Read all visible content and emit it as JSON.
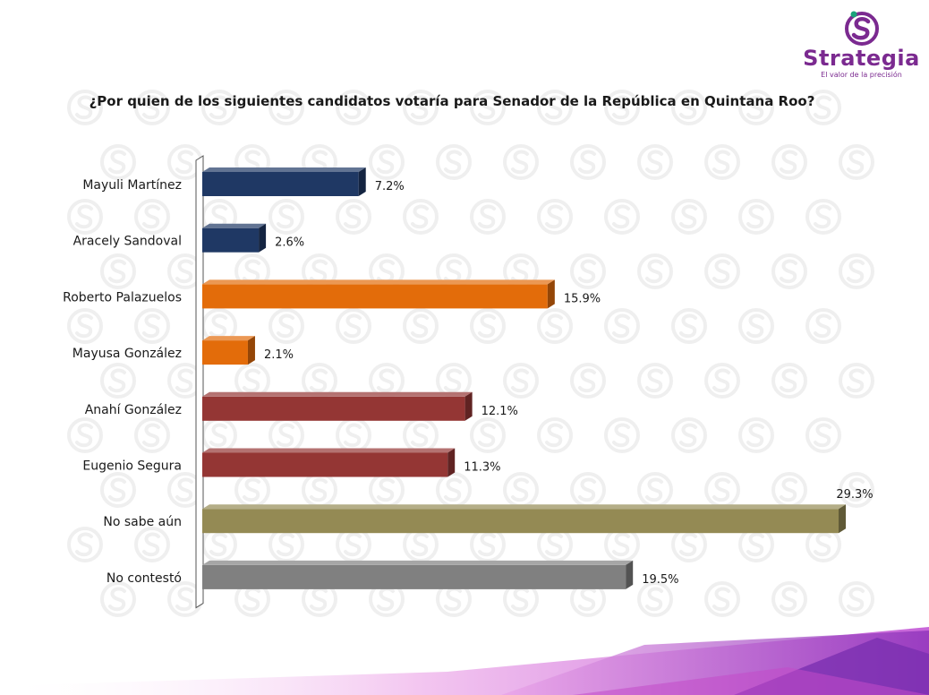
{
  "brand": {
    "name": "Strategia",
    "tagline": "El valor de la precisión",
    "color": "#7b2a90"
  },
  "chart_data": {
    "type": "bar",
    "orientation": "horizontal",
    "title": "¿Por quien de los siguientes candidatos votaría para Senador de la República en Quintana Roo?",
    "categories": [
      "Mayuli Martínez",
      "Aracely Sandoval",
      "Roberto Palazuelos",
      "Mayusa González",
      "Anahí González",
      "Eugenio Segura",
      "No sabe aún",
      "No contestó"
    ],
    "values": [
      7.2,
      2.6,
      15.9,
      2.1,
      12.1,
      11.3,
      29.3,
      19.5
    ],
    "value_labels": [
      "7.2%",
      "2.6%",
      "15.9%",
      "2.1%",
      "12.1%",
      "11.3%",
      "29.3%",
      "19.5%"
    ],
    "colors": [
      "#1f3864",
      "#1f3864",
      "#e36c0a",
      "#e36c0a",
      "#943634",
      "#943634",
      "#948a54",
      "#808080"
    ],
    "xlim": [
      0,
      29.3
    ],
    "grid": false,
    "legend": "none"
  }
}
